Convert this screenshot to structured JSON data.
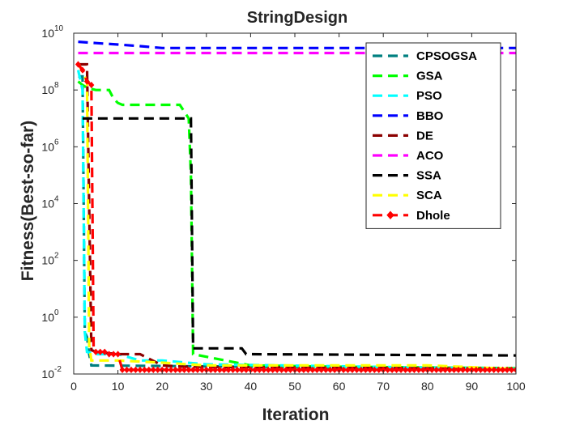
{
  "chart_data": {
    "type": "line",
    "title": "StringDesign",
    "xlabel": "Iteration",
    "ylabel": "Fitness(Best-so-far)",
    "xlim": [
      0,
      100
    ],
    "ylim_log10": [
      -2,
      10
    ],
    "yscale": "log",
    "x_ticks": [
      0,
      10,
      20,
      30,
      40,
      50,
      60,
      70,
      80,
      90,
      100
    ],
    "x_tick_labels": [
      "0",
      "10",
      "20",
      "30",
      "40",
      "50",
      "60",
      "70",
      "80",
      "90",
      "100"
    ],
    "y_ticks_log10": [
      -2,
      0,
      2,
      4,
      6,
      8,
      10
    ],
    "y_tick_base": "10",
    "y_tick_exponents": [
      "-2",
      "0",
      "2",
      "4",
      "6",
      "8",
      "10"
    ],
    "grid": false,
    "legend_position": "top-right",
    "series": [
      {
        "name": "CPSOGSA",
        "color": "#008080",
        "dash": "dashed",
        "marker": "none",
        "x": [
          1,
          2,
          2.5,
          3,
          3.5,
          4,
          100
        ],
        "y": [
          300000000,
          300000000,
          0.3,
          0.2,
          0.05,
          0.02,
          0.015
        ]
      },
      {
        "name": "GSA",
        "color": "#00ff00",
        "dash": "dashed",
        "marker": "none",
        "x": [
          1,
          2,
          3,
          5,
          8,
          9,
          10,
          11,
          12,
          20,
          24,
          26,
          26.5,
          27,
          40,
          60,
          100
        ],
        "y": [
          200000000,
          150000000,
          120000000,
          100000000,
          100000000,
          50000000,
          35000000,
          30000000,
          30000000,
          30000000,
          30000000,
          10000000,
          100000,
          0.05,
          0.02,
          0.018,
          0.016
        ]
      },
      {
        "name": "PSO",
        "color": "#00ffff",
        "dash": "dashed",
        "marker": "none",
        "x": [
          1,
          2,
          2.5,
          3,
          5,
          10,
          15,
          20,
          30,
          100
        ],
        "y": [
          500000000,
          100000000,
          0.3,
          0.06,
          0.05,
          0.05,
          0.03,
          0.03,
          0.022,
          0.015
        ]
      },
      {
        "name": "BBO",
        "color": "#0000ff",
        "dash": "dashed",
        "marker": "none",
        "x": [
          1,
          5,
          10,
          15,
          20,
          30,
          100
        ],
        "y": [
          5000000000,
          4500000000,
          4000000000,
          3500000000,
          3000000000,
          3000000000,
          3000000000
        ]
      },
      {
        "name": "DE",
        "color": "#8b0000",
        "dash": "dashed",
        "marker": "none",
        "x": [
          1,
          3,
          4,
          5,
          10,
          15,
          20,
          25,
          100
        ],
        "y": [
          800000000,
          800000000,
          0.07,
          0.06,
          0.05,
          0.05,
          0.02,
          0.018,
          0.015
        ]
      },
      {
        "name": "ACO",
        "color": "#ff00ff",
        "dash": "dashed",
        "marker": "none",
        "x": [
          1,
          100
        ],
        "y": [
          2000000000,
          2000000000
        ]
      },
      {
        "name": "SSA",
        "color": "#000000",
        "dash": "dashed",
        "marker": "none",
        "x": [
          2,
          26.5,
          27,
          38,
          39,
          100
        ],
        "y": [
          10000000,
          10000000,
          0.08,
          0.08,
          0.05,
          0.045
        ]
      },
      {
        "name": "SCA",
        "color": "#ffff00",
        "dash": "dashed",
        "marker": "none",
        "x": [
          1,
          3,
          3.5,
          4,
          10,
          20,
          30,
          60,
          80,
          100
        ],
        "y": [
          900000000,
          200000000,
          0.1,
          0.03,
          0.03,
          0.025,
          0.02,
          0.02,
          0.02,
          0.015
        ]
      },
      {
        "name": "Dhole",
        "color": "#ff0000",
        "dash": "dashed",
        "marker": "diamond",
        "x": [
          1,
          2,
          3,
          4,
          4.5,
          5,
          6,
          7,
          8,
          9,
          10,
          11,
          100
        ],
        "y": [
          800000000,
          500000000,
          200000000,
          150000000,
          0.06,
          0.06,
          0.06,
          0.06,
          0.05,
          0.05,
          0.05,
          0.014,
          0.014
        ]
      }
    ]
  }
}
